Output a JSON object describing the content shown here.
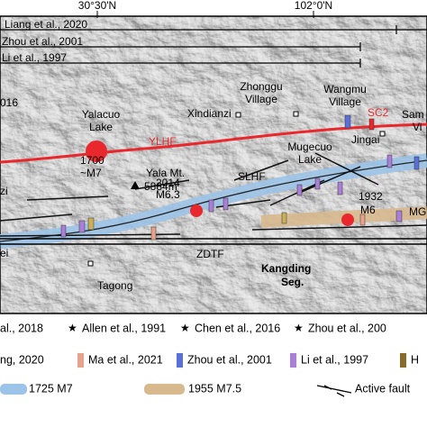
{
  "header": {
    "lat_labels": [
      "30°30'N",
      "102°0'N"
    ]
  },
  "ranges": [
    "Liang et al., 2020",
    "Zhou et al., 2001",
    "Li et al., 1997"
  ],
  "labels": [
    "016",
    "Yalacuo",
    "Lake",
    "YLHF",
    "Xindianzi",
    "Zhonggu",
    "Village",
    "Wangmu",
    "Village",
    "SC2",
    "Jingai",
    "Sam",
    "Vi",
    "1700",
    "~M7",
    "Yala Mt.",
    "5884m",
    "zi",
    "SLHF",
    "Mugecuo",
    "Lake",
    "2014",
    "M6.3",
    "1932",
    "M6",
    "MG",
    "ei",
    "ZDTF",
    "Kangding",
    "Seg.",
    "Tagong"
  ],
  "legend": {
    "row1": [
      "al., 2018",
      "Allen et al., 1991",
      "Chen et al., 2016",
      "Zhou et al., 200"
    ],
    "row2": [
      "ng, 2020",
      "Ma et al., 2021",
      "Zhou et al., 2001",
      "Li et al., 1997",
      "H"
    ],
    "row3": [
      "1725 M7",
      "1955 M7.5",
      "Active fault"
    ]
  }
}
